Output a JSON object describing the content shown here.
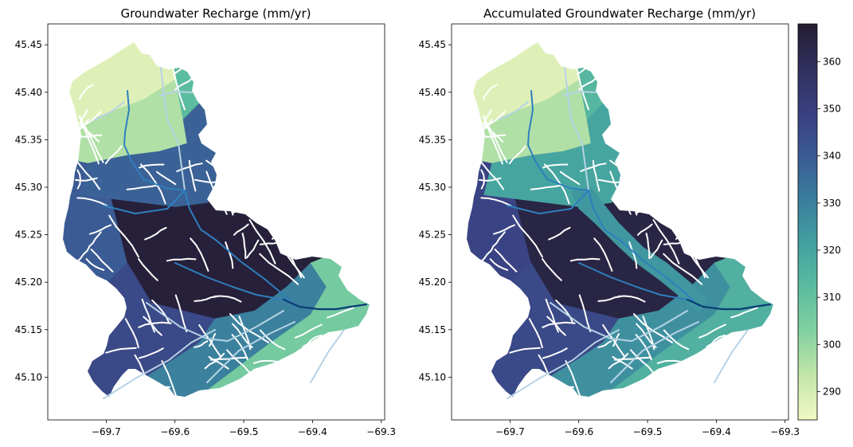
{
  "chart_data": [
    {
      "type": "choropleth-map",
      "title": "Groundwater Recharge (mm/yr)",
      "xlim": [
        -69.785,
        -69.295
      ],
      "ylim": [
        45.055,
        45.472
      ],
      "x_ticks": [
        -69.7,
        -69.6,
        -69.5,
        -69.4,
        -69.3
      ],
      "y_ticks": [
        45.1,
        45.15,
        45.2,
        45.25,
        45.3,
        45.35,
        45.4,
        45.45
      ],
      "x_tick_labels": [
        "−69.7",
        "−69.6",
        "−69.5",
        "−69.4",
        "−69.3"
      ],
      "y_tick_labels": [
        "45.10",
        "45.15",
        "45.20",
        "45.25",
        "45.30",
        "45.35",
        "45.40",
        "45.45"
      ],
      "grid": false,
      "regions": [
        {
          "zone": "north-west",
          "value": 288
        },
        {
          "zone": "north",
          "value": 296
        },
        {
          "zone": "north-east",
          "value": 312
        },
        {
          "zone": "upper-middle",
          "value": 338
        },
        {
          "zone": "west",
          "value": 340
        },
        {
          "zone": "center",
          "value": 366
        },
        {
          "zone": "south-west",
          "value": 346
        },
        {
          "zone": "south-central",
          "value": 330
        },
        {
          "zone": "south-east",
          "value": 306
        }
      ]
    },
    {
      "type": "choropleth-map",
      "title": "Accumulated Groundwater Recharge (mm/yr)",
      "xlim": [
        -69.785,
        -69.295
      ],
      "ylim": [
        45.055,
        45.472
      ],
      "x_ticks": [
        -69.7,
        -69.6,
        -69.5,
        -69.4,
        -69.3
      ],
      "y_ticks": [
        45.1,
        45.15,
        45.2,
        45.25,
        45.3,
        45.35,
        45.4,
        45.45
      ],
      "x_tick_labels": [
        "−69.7",
        "−69.6",
        "−69.5",
        "−69.4",
        "−69.3"
      ],
      "y_tick_labels": [
        "45.10",
        "45.15",
        "45.20",
        "45.25",
        "45.30",
        "45.35",
        "45.40",
        "45.45"
      ],
      "grid": false,
      "regions": [
        {
          "zone": "north-west",
          "value": 288
        },
        {
          "zone": "north",
          "value": 296
        },
        {
          "zone": "north-east",
          "value": 314
        },
        {
          "zone": "upper-middle",
          "value": 320
        },
        {
          "zone": "west",
          "value": 348
        },
        {
          "zone": "center",
          "value": 364
        },
        {
          "zone": "south-west",
          "value": 346
        },
        {
          "zone": "south-central",
          "value": 326
        },
        {
          "zone": "south-east",
          "value": 316
        },
        {
          "zone": "main-channel",
          "value": 324
        }
      ]
    }
  ],
  "colorbar": {
    "vmin": 284,
    "vmax": 368,
    "ticks": [
      290,
      300,
      310,
      320,
      330,
      340,
      350,
      360
    ],
    "tick_labels": [
      "290",
      "300",
      "310",
      "320",
      "330",
      "340",
      "350",
      "360"
    ],
    "colormap": "crest",
    "stops": [
      "#f2f8c4",
      "#c3e6a8",
      "#83d1a0",
      "#5cbc9f",
      "#43a1a0",
      "#3a7e9d",
      "#3b5b94",
      "#3a3f80",
      "#30305e",
      "#241c30"
    ]
  },
  "streams": {
    "minor_color": "#ffffff",
    "mid_color": "#b7d3e6",
    "main_color": "#2f7fbe",
    "outlet_color": "#0b3d75"
  }
}
